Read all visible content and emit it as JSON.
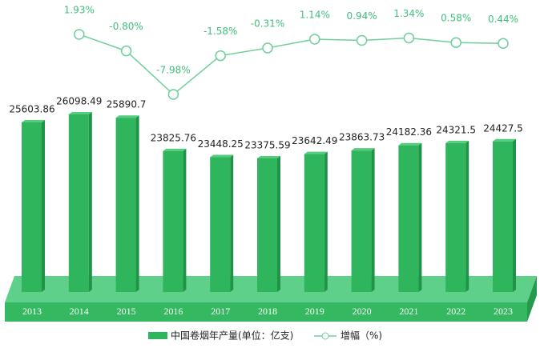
{
  "chart_data": {
    "type": "bar",
    "categories": [
      "2013",
      "2014",
      "2015",
      "2016",
      "2017",
      "2018",
      "2019",
      "2020",
      "2021",
      "2022",
      "2023"
    ],
    "series": [
      {
        "name": "中国卷烟年产量(单位：亿支)",
        "color": "#2fb55c",
        "values": [
          25603.86,
          26098.49,
          25890.7,
          23825.76,
          23448.25,
          23375.59,
          23642.49,
          23863.73,
          24182.36,
          24321.5,
          24427.5
        ]
      },
      {
        "name": "增幅（%)",
        "type": "line",
        "color": "#6fcf9a",
        "values": [
          null,
          1.93,
          -0.8,
          -7.98,
          -1.58,
          -0.31,
          1.14,
          0.94,
          1.34,
          0.58,
          0.44
        ],
        "value_labels": [
          null,
          "1.93%",
          "-0.80%",
          "-7.98%",
          "-1.58%",
          "-0.31%",
          "1.14%",
          "0.94%",
          "1.34%",
          "0.58%",
          "0.44%"
        ]
      }
    ]
  }
}
